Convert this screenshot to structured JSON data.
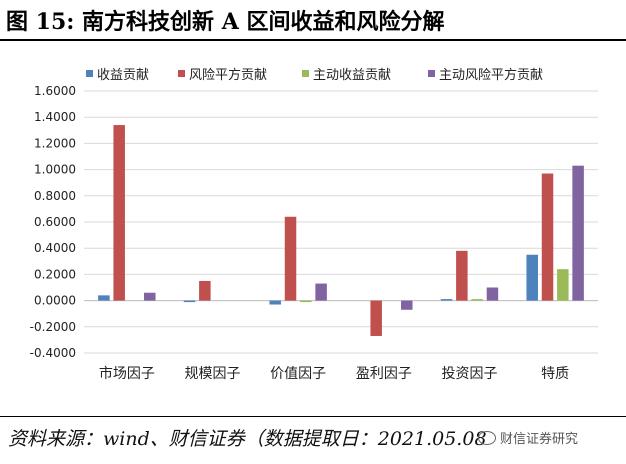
{
  "figure": {
    "title": "图 15:  南方科技创新 A 区间收益和风险分解"
  },
  "source": "资料来源：wind、财信证券（数据提取日：2021.05.08",
  "watermark": "财信证券研究",
  "colors": {
    "收益贡献": "#4F81BD",
    "风险平方贡献": "#C0504D",
    "主动收益贡献": "#9BBB59",
    "主动风险平方贡献": "#8064A2"
  },
  "chart_data": {
    "type": "bar",
    "categories": [
      "市场因子",
      "规模因子",
      "价值因子",
      "盈利因子",
      "投资因子",
      "特质"
    ],
    "series": [
      {
        "name": "收益贡献",
        "values": [
          0.04,
          -0.01,
          -0.03,
          0.0,
          0.01,
          0.35
        ]
      },
      {
        "name": "风险平方贡献",
        "values": [
          1.34,
          0.15,
          0.64,
          -0.27,
          0.38,
          0.97
        ]
      },
      {
        "name": "主动收益贡献",
        "values": [
          0.0,
          0.0,
          -0.01,
          0.0,
          0.01,
          0.24
        ]
      },
      {
        "name": "主动风险平方贡献",
        "values": [
          0.06,
          0.0,
          0.13,
          -0.07,
          0.1,
          1.03
        ]
      }
    ],
    "ylim": [
      -0.4,
      1.6
    ],
    "yticks": [
      "-0.4000",
      "-0.2000",
      "0.0000",
      "0.2000",
      "0.4000",
      "0.6000",
      "0.8000",
      "1.0000",
      "1.2000",
      "1.4000",
      "1.6000"
    ],
    "ytick_values": [
      -0.4,
      -0.2,
      0.0,
      0.2,
      0.4,
      0.6,
      0.8,
      1.0,
      1.2,
      1.4,
      1.6
    ],
    "gridlines": true,
    "legend_position": "top"
  }
}
